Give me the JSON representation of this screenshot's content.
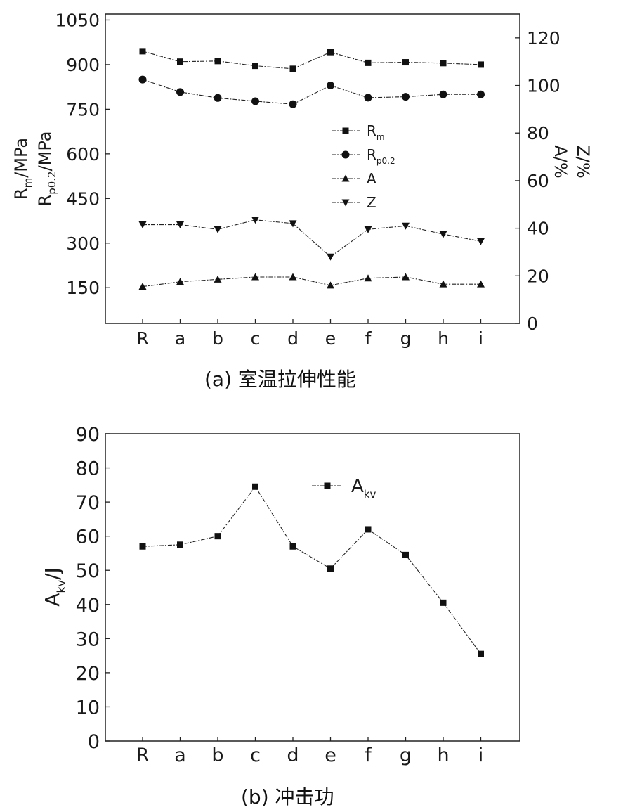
{
  "chart_data": [
    {
      "type": "line",
      "caption": "(a) 室温拉伸性能",
      "categories": [
        "R",
        "a",
        "b",
        "c",
        "d",
        "e",
        "f",
        "g",
        "h",
        "i"
      ],
      "y_left": {
        "label_parts": [
          {
            "base": "R",
            "sub": "m",
            "rest": "/MPa"
          },
          {
            "base": "R",
            "sub": "p0.2",
            "rest": "/MPa"
          }
        ],
        "range": [
          30,
          1070
        ],
        "ticks": [
          150,
          300,
          450,
          600,
          750,
          900,
          1050
        ]
      },
      "y_right": {
        "label_lines": [
          "A/%",
          "Z/%"
        ],
        "range": [
          0,
          130
        ],
        "ticks": [
          0,
          20,
          40,
          60,
          80,
          100,
          120
        ]
      },
      "grid": false,
      "legend_position": "center",
      "series": [
        {
          "name_base": "R",
          "name_sub": "m",
          "axis": "left",
          "marker": "square",
          "values": [
            945,
            910,
            912,
            896,
            886,
            942,
            906,
            908,
            905,
            900
          ]
        },
        {
          "name_base": "R",
          "name_sub": "p0.2",
          "axis": "left",
          "marker": "circle",
          "values": [
            850,
            808,
            788,
            777,
            767,
            830,
            789,
            792,
            800,
            800
          ]
        },
        {
          "name_base": "A",
          "name_sub": "",
          "axis": "right",
          "marker": "triangle-up",
          "values": [
            15.5,
            17.5,
            18.5,
            19.5,
            19.5,
            16,
            19,
            19.5,
            16.5,
            16.5
          ]
        },
        {
          "name_base": "Z",
          "name_sub": "",
          "axis": "right",
          "marker": "triangle-down",
          "values": [
            41.5,
            41.5,
            39.5,
            43.5,
            42,
            28,
            39.5,
            41,
            37.5,
            34.5
          ]
        }
      ]
    },
    {
      "type": "line",
      "caption": "(b) 冲击功",
      "categories": [
        "R",
        "a",
        "b",
        "c",
        "d",
        "e",
        "f",
        "g",
        "h",
        "i"
      ],
      "y_left": {
        "label_parts": [
          {
            "base": "A",
            "sub": "kv",
            "rest": "/J"
          }
        ],
        "range": [
          0,
          90
        ],
        "ticks": [
          0,
          10,
          20,
          30,
          40,
          50,
          60,
          70,
          80,
          90
        ]
      },
      "grid": false,
      "legend_position": "top-right",
      "series": [
        {
          "name_base": "A",
          "name_sub": "kv",
          "axis": "left",
          "marker": "square",
          "values": [
            57,
            57.5,
            60,
            74.5,
            57,
            50.5,
            62,
            54.5,
            40.5,
            25.5
          ]
        }
      ]
    }
  ]
}
